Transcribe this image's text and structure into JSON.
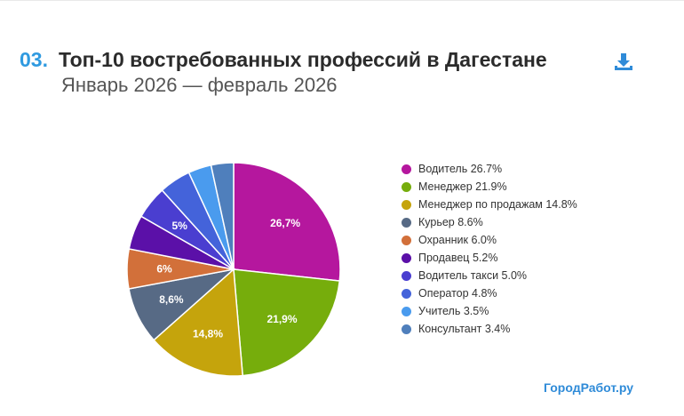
{
  "header": {
    "number": "03.",
    "title": "Топ-10 востребованных профессий в Дагестане",
    "subtitle": "Январь 2026 — февраль 2026"
  },
  "icons": {
    "download": "download-icon"
  },
  "brand": "ГородРабот.ру",
  "chart_data": {
    "type": "pie",
    "categories": [
      "Водитель",
      "Менеджер",
      "Менеджер по продажам",
      "Курьер",
      "Охранник",
      "Продавец",
      "Водитель такси",
      "Оператор",
      "Учитель",
      "Консультант"
    ],
    "values": [
      26.7,
      21.9,
      14.8,
      8.6,
      6.0,
      5.2,
      5.0,
      4.8,
      3.5,
      3.4
    ],
    "colors": [
      "#b5179e",
      "#76ad0c",
      "#c5a40c",
      "#576a85",
      "#d2703a",
      "#5b10a8",
      "#4a3ed0",
      "#4463da",
      "#4a9bee",
      "#4f7fbc"
    ],
    "legend_labels": [
      "Водитель 26.7%",
      "Менеджер 21.9%",
      "Менеджер по продажам 14.8%",
      "Курьер 8.6%",
      "Охранник 6.0%",
      "Продавец 5.2%",
      "Водитель такси 5.0%",
      "Оператор 4.8%",
      "Учитель 3.5%",
      "Консультант 3.4%"
    ],
    "slice_labels": [
      "26,7%",
      "21,9%",
      "14,8%",
      "8,6%",
      "6%",
      "",
      "5%",
      "",
      "",
      ""
    ],
    "legend_position": "right"
  }
}
